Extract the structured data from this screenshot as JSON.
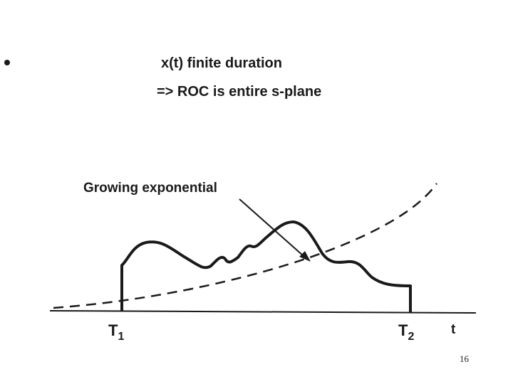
{
  "bullets": {
    "line1": "x(t) finite duration",
    "line2": "=> ROC is entire s-plane"
  },
  "diagram": {
    "annotation": "Growing exponential",
    "t1_label": "T",
    "t1_sub": "1",
    "t2_label": "T",
    "t2_sub": "2",
    "axis_label": "t"
  },
  "slide_number": "16",
  "colors": {
    "ink": "#1a1a1a"
  }
}
